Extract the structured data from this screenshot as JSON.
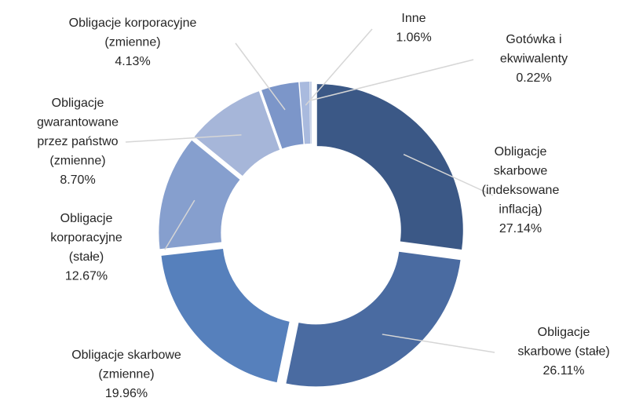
{
  "chart_data": {
    "type": "pie",
    "variant": "donut",
    "title": "",
    "slices": [
      {
        "label": [
          "Obligacje",
          "skarbowe",
          "(indeksowane",
          "inflacją)"
        ],
        "percent_text": "27.14%",
        "value": 27.14,
        "color": "#3b5886"
      },
      {
        "label": [
          "Obligacje",
          "skarbowe (stałe)"
        ],
        "percent_text": "26.11%",
        "value": 26.11,
        "color": "#4a6ba1"
      },
      {
        "label": [
          "Obligacje skarbowe",
          "(zmienne)"
        ],
        "percent_text": "19.96%",
        "value": 19.96,
        "color": "#5680bc"
      },
      {
        "label": [
          "Obligacje",
          "korporacyjne",
          "(stałe)"
        ],
        "percent_text": "12.67%",
        "value": 12.67,
        "color": "#869fce"
      },
      {
        "label": [
          "Obligacje",
          "gwarantowane",
          "przez państwo",
          "(zmienne)"
        ],
        "percent_text": "8.70%",
        "value": 8.7,
        "color": "#a6b6d9"
      },
      {
        "label": [
          "Obligacje korporacyjne",
          "(zmienne)"
        ],
        "percent_text": "4.13%",
        "value": 4.13,
        "color": "#7c96c9"
      },
      {
        "label": [
          "Inne"
        ],
        "percent_text": "1.06%",
        "value": 1.06,
        "color": "#a9bade"
      },
      {
        "label": [
          "Gotówka i",
          "ekwiwalenty"
        ],
        "percent_text": "0.22%",
        "value": 0.22,
        "color": "#c7d2e8"
      }
    ],
    "start_angle_deg": 0,
    "direction": "clockwise",
    "legend": "none",
    "leader_line_color": "#d6d6d6"
  }
}
